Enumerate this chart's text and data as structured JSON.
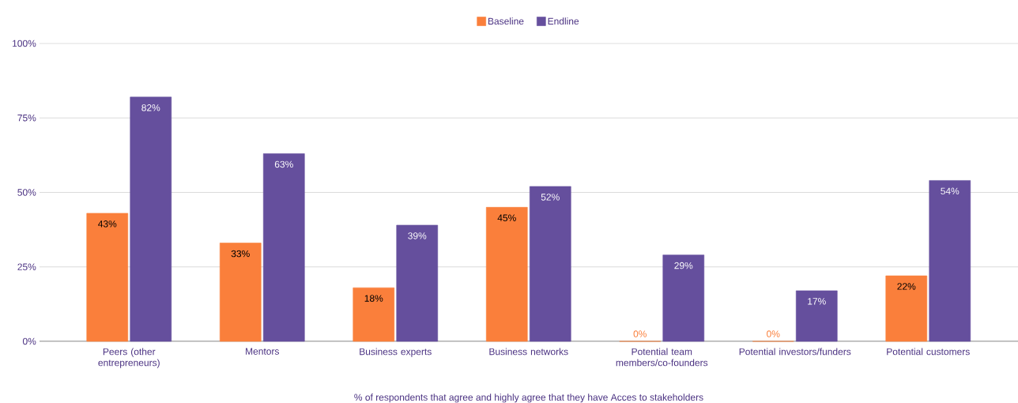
{
  "chart_data": {
    "type": "bar",
    "categories": [
      "Peers (other entrepreneurs)",
      "Mentors",
      "Business experts",
      "Business networks",
      "Potential team members/co-founders",
      "Potential investors/funders",
      "Potential customers"
    ],
    "series": [
      {
        "name": "Baseline",
        "color": "#fa7f3b",
        "values": [
          43,
          33,
          18,
          45,
          0,
          0,
          22
        ],
        "value_labels": [
          "43%",
          "33%",
          "18%",
          "45%",
          "0%",
          "0%",
          "22%"
        ]
      },
      {
        "name": "Endline",
        "color": "#654f9d",
        "values": [
          82,
          63,
          39,
          52,
          29,
          17,
          54
        ],
        "value_labels": [
          "82%",
          "63%",
          "39%",
          "52%",
          "29%",
          "17%",
          "54%"
        ]
      }
    ],
    "xlabel": "% of respondents that agree and highly agree that they have Acces to stakeholders",
    "ylim": [
      0,
      100
    ],
    "yticks": [
      {
        "value": 0,
        "label": "0%"
      },
      {
        "value": 25,
        "label": "25%"
      },
      {
        "value": 50,
        "label": "50%"
      },
      {
        "value": 75,
        "label": "75%"
      },
      {
        "value": 100,
        "label": "100%"
      }
    ],
    "grid": "y",
    "legend": "top"
  }
}
